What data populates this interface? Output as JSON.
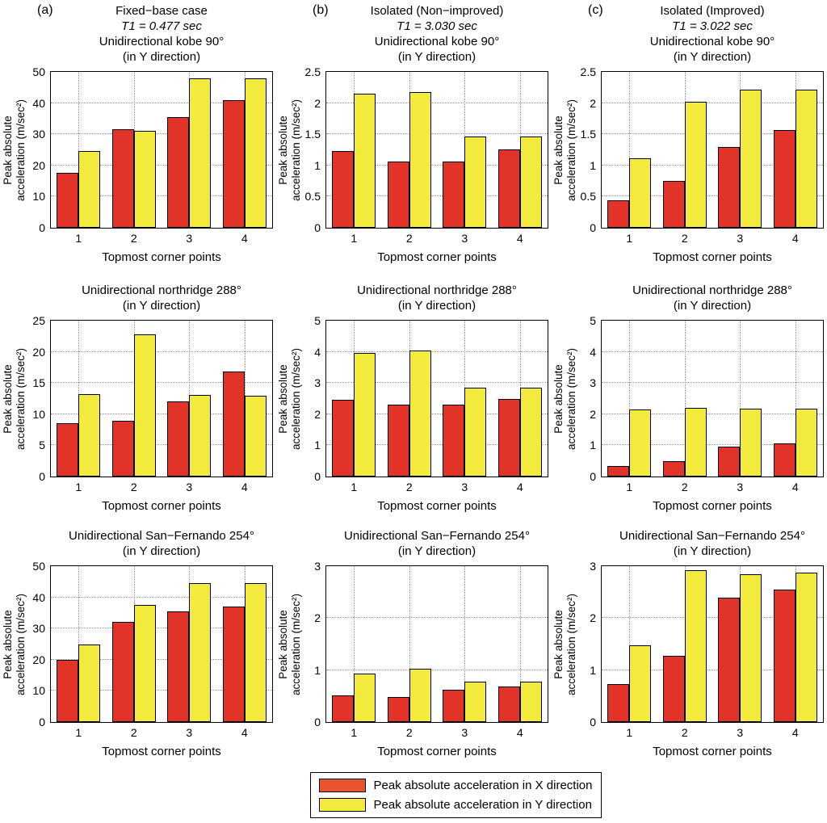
{
  "figure": {
    "columns": [
      {
        "tag": "(a)",
        "header": "Fixed−base case",
        "period": "T1 = 0.477 sec"
      },
      {
        "tag": "(b)",
        "header": "Isolated (Non−improved)",
        "period": "T1 = 3.030 sec"
      },
      {
        "tag": "(c)",
        "header": "Isolated (Improved)",
        "period": "T1 = 3.022 sec"
      }
    ],
    "ylabel_lines": [
      "Peak absolute",
      "acceleration (m/sec²)"
    ],
    "colors": {
      "bar_x": "#e13327",
      "bar_y": "#f2eb3d",
      "bar_edge": "#000000",
      "grid": "#8c8c8c"
    },
    "legend": [
      {
        "label": "Peak absolute acceleration in X direction",
        "color": "#e8542e"
      },
      {
        "label": "Peak absolute acceleration in Y direction",
        "color": "#f2eb3d"
      }
    ]
  },
  "chart_data": [
    {
      "id": "a-kobe",
      "type": "bar",
      "panel": "(a)",
      "title": "Unidirectional kobe 90°",
      "subtitle": "(in Y direction)",
      "xlabel": "Topmost corner points",
      "ylabel": "Peak absolute acceleration (m/sec²)",
      "categories": [
        "1",
        "2",
        "3",
        "4"
      ],
      "ylim": [
        0,
        50
      ],
      "yticks": [
        0,
        10,
        20,
        30,
        40,
        50
      ],
      "series": [
        {
          "key": "x",
          "name": "X direction",
          "values": [
            17.5,
            31.5,
            35.5,
            41
          ]
        },
        {
          "key": "y",
          "name": "Y direction",
          "values": [
            24.5,
            31,
            48,
            48
          ]
        }
      ]
    },
    {
      "id": "b-kobe",
      "type": "bar",
      "panel": "(b)",
      "title": "Unidirectional kobe 90°",
      "subtitle": "(in Y direction)",
      "xlabel": "Topmost corner points",
      "ylabel": "Peak absolute acceleration (m/sec²)",
      "categories": [
        "1",
        "2",
        "3",
        "4"
      ],
      "ylim": [
        0,
        2.5
      ],
      "yticks": [
        0,
        0.5,
        1,
        1.5,
        2,
        2.5
      ],
      "series": [
        {
          "key": "x",
          "name": "X direction",
          "values": [
            1.23,
            1.06,
            1.06,
            1.26
          ]
        },
        {
          "key": "y",
          "name": "Y direction",
          "values": [
            2.15,
            2.17,
            1.46,
            1.47
          ]
        }
      ]
    },
    {
      "id": "c-kobe",
      "type": "bar",
      "panel": "(c)",
      "title": "Unidirectional kobe 90°",
      "subtitle": "(in Y direction)",
      "xlabel": "Topmost corner points",
      "ylabel": "Peak absolute acceleration (m/sec²)",
      "categories": [
        "1",
        "2",
        "3",
        "4"
      ],
      "ylim": [
        0,
        2.5
      ],
      "yticks": [
        0,
        0.5,
        1,
        1.5,
        2,
        2.5
      ],
      "series": [
        {
          "key": "x",
          "name": "X direction",
          "values": [
            0.44,
            0.75,
            1.29,
            1.57
          ]
        },
        {
          "key": "y",
          "name": "Y direction",
          "values": [
            1.12,
            2.02,
            2.22,
            2.22
          ]
        }
      ]
    },
    {
      "id": "a-northridge",
      "type": "bar",
      "panel": "(a)",
      "title": "Unidirectional northridge 288°",
      "subtitle": "(in Y direction)",
      "xlabel": "Topmost corner points",
      "ylabel": "Peak absolute acceleration (m/sec²)",
      "categories": [
        "1",
        "2",
        "3",
        "4"
      ],
      "ylim": [
        0,
        25
      ],
      "yticks": [
        0,
        5,
        10,
        15,
        20,
        25
      ],
      "series": [
        {
          "key": "x",
          "name": "X direction",
          "values": [
            8.6,
            9,
            12,
            16.8
          ]
        },
        {
          "key": "y",
          "name": "Y direction",
          "values": [
            13.2,
            22.8,
            13.1,
            13
          ]
        }
      ]
    },
    {
      "id": "b-northridge",
      "type": "bar",
      "panel": "(b)",
      "title": "Unidirectional northridge 288°",
      "subtitle": "(in Y direction)",
      "xlabel": "Topmost corner points",
      "ylabel": "Peak absolute acceleration (m/sec²)",
      "categories": [
        "1",
        "2",
        "3",
        "4"
      ],
      "ylim": [
        0,
        5
      ],
      "yticks": [
        0,
        1,
        2,
        3,
        4,
        5
      ],
      "series": [
        {
          "key": "x",
          "name": "X direction",
          "values": [
            2.45,
            2.3,
            2.3,
            2.5
          ]
        },
        {
          "key": "y",
          "name": "Y direction",
          "values": [
            3.97,
            4.05,
            2.85,
            2.85
          ]
        }
      ]
    },
    {
      "id": "c-northridge",
      "type": "bar",
      "panel": "(c)",
      "title": "Unidirectional northridge 288°",
      "subtitle": "(in Y direction)",
      "xlabel": "Topmost corner points",
      "ylabel": "Peak absolute acceleration (m/sec²)",
      "categories": [
        "1",
        "2",
        "3",
        "4"
      ],
      "ylim": [
        0,
        5
      ],
      "yticks": [
        0,
        1,
        2,
        3,
        4,
        5
      ],
      "series": [
        {
          "key": "x",
          "name": "X direction",
          "values": [
            0.35,
            0.5,
            0.95,
            1.07
          ]
        },
        {
          "key": "y",
          "name": "Y direction",
          "values": [
            2.15,
            2.2,
            2.17,
            2.17
          ]
        }
      ]
    },
    {
      "id": "a-sanfernando",
      "type": "bar",
      "panel": "(a)",
      "title": "Unidirectional San−Fernando 254°",
      "subtitle": "(in Y direction)",
      "xlabel": "Topmost corner points",
      "ylabel": "Peak absolute acceleration (m/sec²)",
      "categories": [
        "1",
        "2",
        "3",
        "4"
      ],
      "ylim": [
        0,
        50
      ],
      "yticks": [
        0,
        10,
        20,
        30,
        40,
        50
      ],
      "series": [
        {
          "key": "x",
          "name": "X direction",
          "values": [
            20,
            32,
            35.5,
            37
          ]
        },
        {
          "key": "y",
          "name": "Y direction",
          "values": [
            25,
            37.5,
            44.5,
            44.5
          ]
        }
      ]
    },
    {
      "id": "b-sanfernando",
      "type": "bar",
      "panel": "(b)",
      "title": "Unidirectional San−Fernando 254°",
      "subtitle": "(in Y direction)",
      "xlabel": "Topmost corner points",
      "ylabel": "Peak absolute acceleration (m/sec²)",
      "categories": [
        "1",
        "2",
        "3",
        "4"
      ],
      "ylim": [
        0,
        3
      ],
      "yticks": [
        0,
        1,
        2,
        3
      ],
      "series": [
        {
          "key": "x",
          "name": "X direction",
          "values": [
            0.52,
            0.48,
            0.62,
            0.68
          ]
        },
        {
          "key": "y",
          "name": "Y direction",
          "values": [
            0.93,
            1.03,
            0.77,
            0.77
          ]
        }
      ]
    },
    {
      "id": "c-sanfernando",
      "type": "bar",
      "panel": "(c)",
      "title": "Unidirectional San−Fernando 254°",
      "subtitle": "(in Y direction)",
      "xlabel": "Topmost corner points",
      "ylabel": "Peak absolute acceleration (m/sec²)",
      "categories": [
        "1",
        "2",
        "3",
        "4"
      ],
      "ylim": [
        0,
        3
      ],
      "yticks": [
        0,
        1,
        2,
        3
      ],
      "series": [
        {
          "key": "x",
          "name": "X direction",
          "values": [
            0.73,
            1.28,
            2.4,
            2.55
          ]
        },
        {
          "key": "y",
          "name": "Y direction",
          "values": [
            1.47,
            2.92,
            2.85,
            2.87
          ]
        }
      ]
    }
  ]
}
